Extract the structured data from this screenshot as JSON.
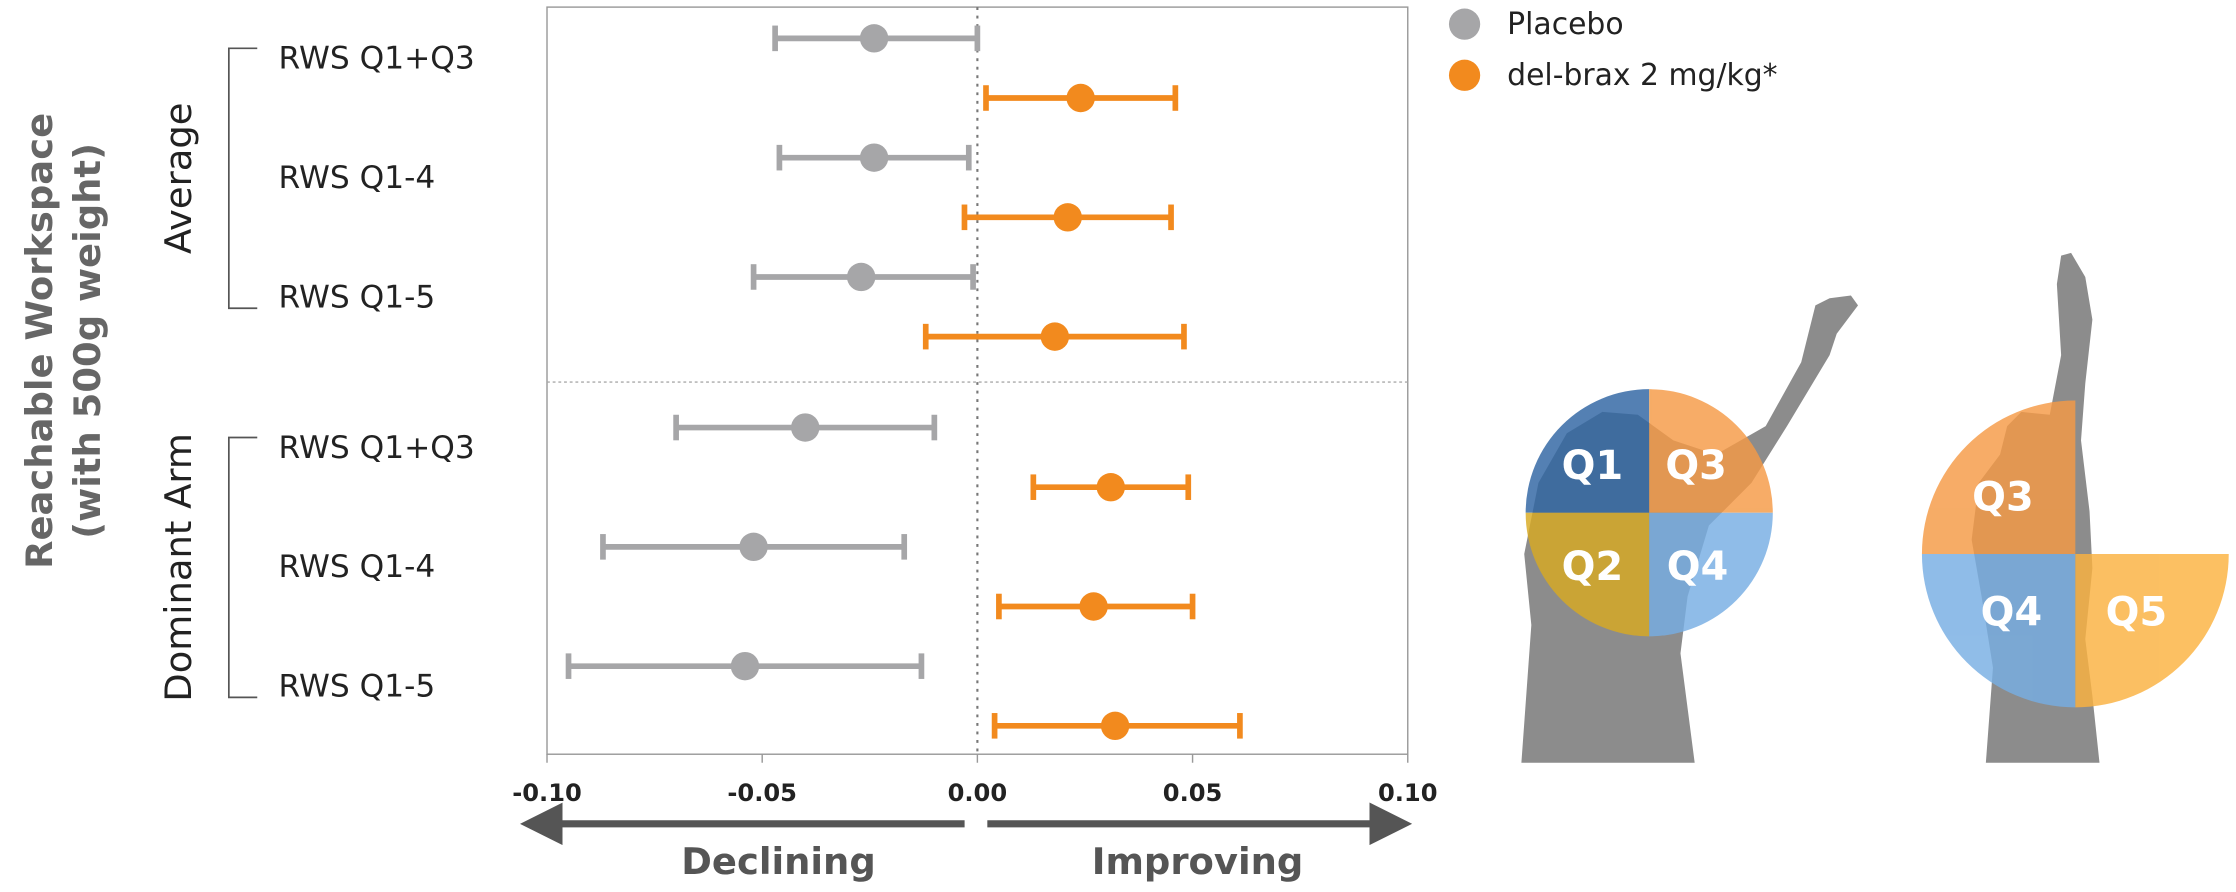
{
  "chart_data": {
    "type": "forest",
    "y_label": [
      "Reachable Workspace",
      "(with 500g weight)"
    ],
    "groups": [
      {
        "name": "Average",
        "categories": [
          "RWS Q1+Q3",
          "RWS Q1-4",
          "RWS Q1-5"
        ]
      },
      {
        "name": "Dominant Arm",
        "categories": [
          "RWS Q1+Q3",
          "RWS Q1-4",
          "RWS Q1-5"
        ]
      }
    ],
    "series": [
      {
        "name": "Placebo",
        "color": "#a6a6a8",
        "values": [
          -0.024,
          -0.024,
          -0.027,
          -0.04,
          -0.052,
          -0.054
        ],
        "lower": [
          -0.047,
          -0.046,
          -0.052,
          -0.07,
          -0.087,
          -0.095
        ],
        "upper": [
          0.0,
          -0.002,
          -0.001,
          -0.01,
          -0.017,
          -0.013
        ]
      },
      {
        "name": "del-brax 2 mg/kg*",
        "color": "#f28a1e",
        "values": [
          0.024,
          0.021,
          0.018,
          0.031,
          0.027,
          0.032
        ],
        "lower": [
          0.002,
          -0.003,
          -0.012,
          0.013,
          0.005,
          0.004
        ],
        "upper": [
          0.046,
          0.045,
          0.048,
          0.049,
          0.05,
          0.061
        ]
      }
    ],
    "xlim": [
      -0.1,
      0.1
    ],
    "xticks": [
      {
        "value": -0.1,
        "label": "-0.10"
      },
      -0.05,
      {
        "value": 0,
        "label": "0.00"
      },
      0.05,
      {
        "value": 0.1,
        "label": "0.10"
      }
    ],
    "annotations": [
      "Declining",
      "Improving"
    ],
    "diagram_labels": {
      "left": [
        "Q1",
        "Q2",
        "Q3",
        "Q4"
      ],
      "right": [
        "Q3",
        "Q4",
        "Q5"
      ]
    }
  }
}
